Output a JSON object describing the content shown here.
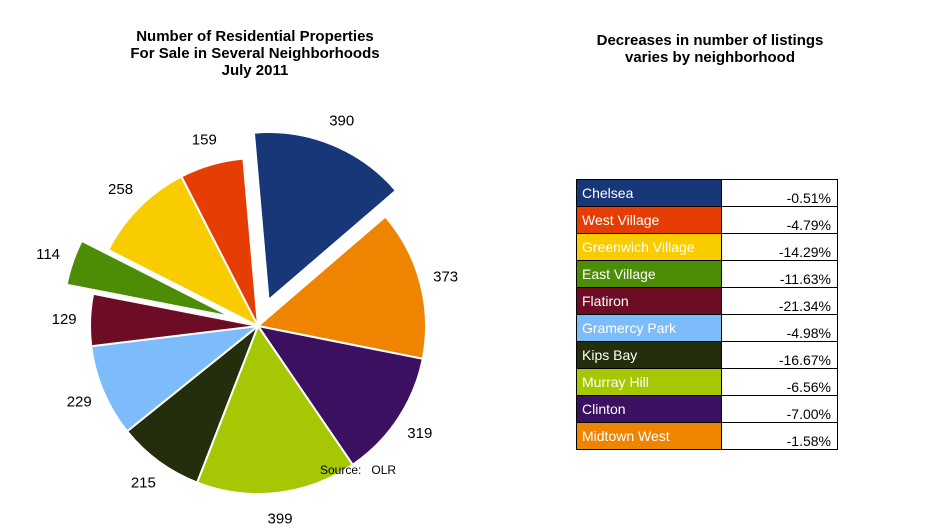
{
  "chart_data": [
    {
      "type": "pie",
      "title": [
        "Number of Residential Properties",
        "For Sale in Several Neighborhoods",
        "July 2011"
      ],
      "slices": [
        {
          "name": "Chelsea",
          "value": 390,
          "label": "390",
          "color": "#173778",
          "exploded": true
        },
        {
          "name": "Midtown West",
          "value": 373,
          "label": "373",
          "color": "#ef8400",
          "exploded": false
        },
        {
          "name": "Clinton",
          "value": 319,
          "label": "319",
          "color": "#3b1060",
          "exploded": false
        },
        {
          "name": "Murray Hill",
          "value": 399,
          "label": "399",
          "color": "#a6c703",
          "exploded": false
        },
        {
          "name": "Kips Bay",
          "value": 215,
          "label": "215",
          "color": "#242e0d",
          "exploded": false
        },
        {
          "name": "Gramercy Park",
          "value": 229,
          "label": "229",
          "color": "#7cbcfa",
          "exploded": false
        },
        {
          "name": "Flatiron",
          "value": 129,
          "label": "129",
          "color": "#6d0c25",
          "exploded": false
        },
        {
          "name": "East Village",
          "value": 114,
          "label": "114",
          "color": "#4d8c05",
          "exploded": true
        },
        {
          "name": "Greenwich Village",
          "value": 258,
          "label": "258",
          "color": "#f9cc00",
          "exploded": false
        },
        {
          "name": "West Village",
          "value": 159,
          "label": "159",
          "color": "#e63d04",
          "exploded": false
        }
      ],
      "source": "Source:   OLR"
    },
    {
      "type": "table",
      "title": [
        "Decreases in number of listings",
        "varies by neighborhood"
      ],
      "rows": [
        {
          "name": "Chelsea",
          "value": "-0.51%",
          "color": "#173778"
        },
        {
          "name": "West Village",
          "value": "-4.79%",
          "color": "#e63d04"
        },
        {
          "name": "Greenwich Village",
          "value": "-14.29%",
          "color": "#f9cc00"
        },
        {
          "name": "East Village",
          "value": "-11.63%",
          "color": "#4d8c05"
        },
        {
          "name": "Flatiron",
          "value": "-21.34%",
          "color": "#6d0c25"
        },
        {
          "name": "Gramercy Park",
          "value": "-4.98%",
          "color": "#7cbcfa"
        },
        {
          "name": "Kips Bay",
          "value": "-16.67%",
          "color": "#242e0d"
        },
        {
          "name": "Murray Hill",
          "value": "-6.56%",
          "color": "#a6c703"
        },
        {
          "name": "Clinton",
          "value": "-7.00%",
          "color": "#3b1060"
        },
        {
          "name": "Midtown West",
          "value": "-1.58%",
          "color": "#ef8400"
        }
      ]
    }
  ]
}
